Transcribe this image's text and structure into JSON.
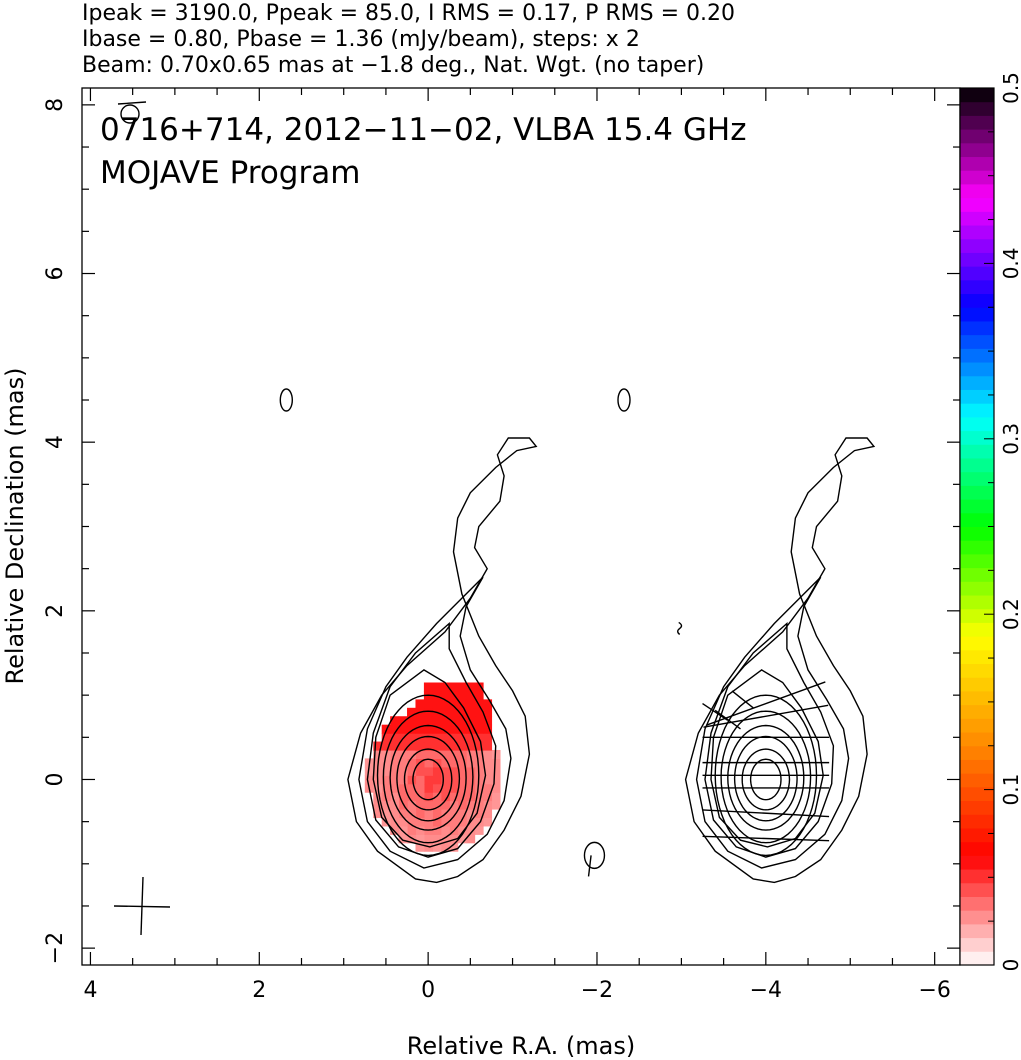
{
  "header": {
    "line1": "Ipeak = 3190.0, Ppeak = 85.0, I RMS = 0.17, P RMS = 0.20",
    "line2": "Ibase = 0.80, Pbase = 1.36 (mJy/beam), steps: x 2",
    "line3": "Beam: 0.70x0.65 mas at −1.8 deg., Nat. Wgt. (no taper)"
  },
  "chart_data": {
    "type": "heatmap",
    "title": "0716+714, 2012−11−02, VLBA 15.4 GHz",
    "subtitle": "MOJAVE Program",
    "xlabel": "Relative R.A. (mas)",
    "ylabel": "Relative Declination (mas)",
    "xlim": [
      4.1,
      -6.3
    ],
    "ylim": [
      -2.2,
      8.2
    ],
    "x_ticks": [
      4,
      2,
      0,
      -2,
      -4,
      -6
    ],
    "x_tick_labels": [
      "4",
      "2",
      "0",
      "−2",
      "−4",
      "−6"
    ],
    "y_ticks": [
      -2,
      0,
      2,
      4,
      6,
      8
    ],
    "y_tick_labels": [
      "−2",
      "0",
      "2",
      "4",
      "6",
      "8"
    ],
    "colorbar": {
      "min": 0,
      "max": 0.5,
      "ticks": [
        0,
        0.1,
        0.2,
        0.3,
        0.4,
        0.5
      ],
      "tick_labels": [
        "0",
        "0.1",
        "0.2",
        "0.3",
        "0.4",
        "0.5"
      ],
      "colors": [
        "#ffffff",
        "#ff0000",
        "#ff8800",
        "#ffff00",
        "#00ff00",
        "#00ffff",
        "#0000ff",
        "#ff00ff",
        "#000000"
      ]
    },
    "beam_mas": {
      "major": 0.7,
      "minor": 0.65,
      "pa_deg": -1.8
    },
    "cross_center_mas": {
      "x": 3.35,
      "y": -1.5
    },
    "left_panel": {
      "core_mas": {
        "x": 0.0,
        "y": 0.0
      },
      "contour_levels_mJy": [
        0.8,
        1.6,
        3.2,
        6.4,
        12.8,
        25.6,
        51.2,
        102.4,
        204.8,
        409.6,
        819.2,
        1638.4
      ],
      "polarization_fraction_region": {
        "value": 0.05,
        "x_range": [
          -0.75,
          0.8
        ],
        "y_range": [
          -0.85,
          1.2
        ]
      }
    },
    "right_panel": {
      "offset_ra_mas": -4.0,
      "evpa_vectors": [
        {
          "y": 0.9,
          "angle": 20
        },
        {
          "y": 0.75,
          "angle": 10
        },
        {
          "y": 0.5,
          "angle": 0
        },
        {
          "y": 0.2,
          "angle": 0
        },
        {
          "y": 0.05,
          "angle": 0
        },
        {
          "y": -0.1,
          "angle": 0
        },
        {
          "y": -0.4,
          "angle": -3
        },
        {
          "y": -0.7,
          "angle": -2
        }
      ]
    }
  }
}
